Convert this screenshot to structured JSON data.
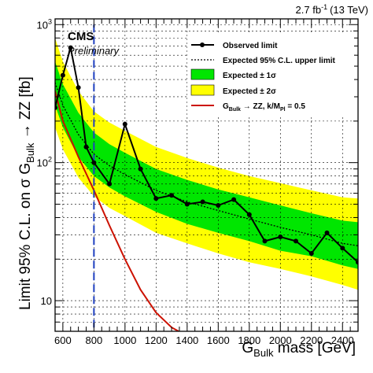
{
  "chart_data": {
    "type": "line",
    "header_lumi": "2.7 fb",
    "header_lumi_sup": "-1",
    "header_energy": "(13 TeV)",
    "experiment": "CMS",
    "status": "Preliminary",
    "xlabel_main": "G",
    "xlabel_sub": "Bulk",
    "xlabel_tail": " mass [GeV]",
    "ylabel_main": "Limit 95% C.L. on σ G",
    "ylabel_sub": "Bulk",
    "ylabel_tail": " → ZZ [fb]",
    "xlim": [
      550,
      2500
    ],
    "ylim": [
      6,
      1100
    ],
    "yscale": "log",
    "x_ticks": [
      600,
      800,
      1000,
      1200,
      1400,
      1600,
      1800,
      2000,
      2200,
      2400
    ],
    "x_tick_labels": [
      "600",
      "800",
      "1000",
      "1200",
      "1400",
      "1600",
      "1800",
      "2000",
      "2200",
      "2400"
    ],
    "y_major": [
      {
        "value": 10,
        "base": "10",
        "exp": ""
      },
      {
        "value": 100,
        "base": "10",
        "exp": "2"
      },
      {
        "value": 1000,
        "base": "10",
        "exp": "3"
      }
    ],
    "grid": true,
    "legend": [
      {
        "label": "Observed limit",
        "style": "observed"
      },
      {
        "label": "Expected 95% C.L. upper limit",
        "style": "expected"
      },
      {
        "label": "Expected ± 1σ",
        "style": "band1"
      },
      {
        "label": "Expected ± 2σ",
        "style": "band2"
      },
      {
        "label_main": "G",
        "label_sub": "Bulk",
        "label_mid": " → ZZ, k/M",
        "label_sub2": "Pl",
        "label_tail": " = 0.5",
        "style": "theory"
      }
    ],
    "colors": {
      "band1": "#00e600",
      "band2": "#ffff00",
      "theory": "#cc1100",
      "marker": "#1f3fbf",
      "observed": "#000000"
    },
    "marker_line_x": 800,
    "observed": {
      "x": [
        550,
        600,
        650,
        700,
        750,
        800,
        900,
        1000,
        1100,
        1200,
        1300,
        1400,
        1500,
        1600,
        1700,
        1800,
        1900,
        2000,
        2100,
        2200,
        2300,
        2400,
        2500
      ],
      "y": [
        250,
        430,
        680,
        350,
        130,
        100,
        70,
        190,
        90,
        55,
        58,
        50,
        52,
        49,
        54,
        42,
        27,
        29,
        27,
        22,
        31,
        24,
        19
      ]
    },
    "expected": {
      "x": [
        550,
        600,
        700,
        800,
        900,
        1000,
        1200,
        1400,
        1600,
        1800,
        2000,
        2200,
        2400,
        2500
      ],
      "y": [
        380,
        260,
        160,
        115,
        95,
        82,
        63,
        52,
        45,
        39,
        34,
        30,
        26,
        25
      ]
    },
    "band_1sigma": {
      "x": [
        550,
        600,
        700,
        800,
        900,
        1000,
        1200,
        1400,
        1600,
        1800,
        2000,
        2200,
        2400,
        2500
      ],
      "lo": [
        260,
        180,
        110,
        80,
        66,
        57,
        44,
        36,
        31,
        27,
        23,
        21,
        18,
        17
      ],
      "hi": [
        540,
        370,
        230,
        165,
        136,
        118,
        90,
        75,
        64,
        56,
        49,
        43,
        38,
        37
      ]
    },
    "band_2sigma": {
      "x": [
        550,
        600,
        700,
        800,
        900,
        1000,
        1200,
        1400,
        1600,
        1800,
        2000,
        2200,
        2400,
        2500
      ],
      "lo": [
        180,
        125,
        78,
        57,
        47,
        41,
        31,
        26,
        22,
        19,
        17,
        15,
        13,
        12
      ],
      "hi": [
        800,
        540,
        330,
        235,
        195,
        170,
        130,
        108,
        92,
        80,
        71,
        63,
        56,
        55
      ]
    },
    "theory": {
      "x": [
        550,
        600,
        700,
        800,
        900,
        1000,
        1100,
        1200,
        1300,
        1345
      ],
      "y": [
        330,
        200,
        110,
        63,
        35,
        20,
        12,
        8.2,
        6.4,
        6
      ]
    }
  }
}
